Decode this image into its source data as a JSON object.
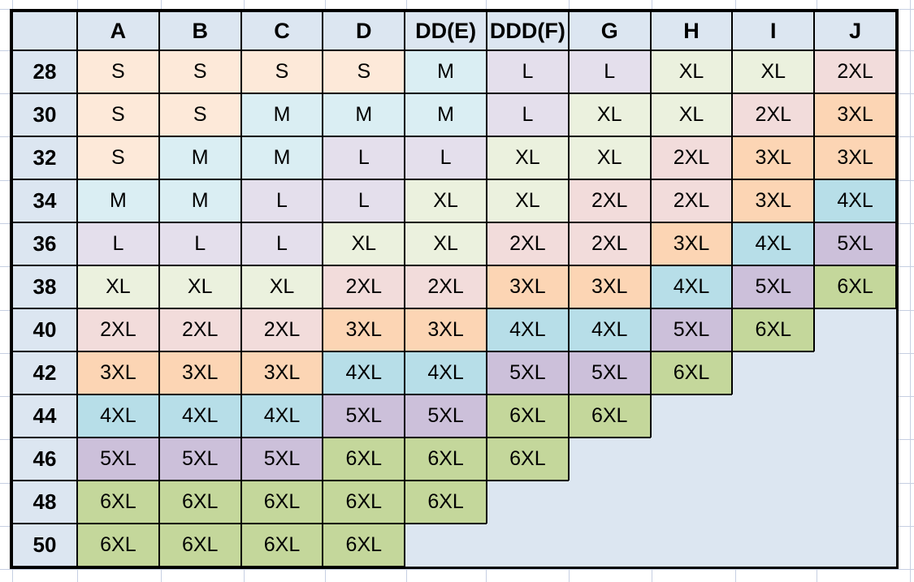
{
  "chart_data": {
    "type": "table",
    "columns": [
      "",
      "A",
      "B",
      "C",
      "D",
      "DD(E)",
      "DDD(F)",
      "G",
      "H",
      "I",
      "J"
    ],
    "rows": [
      [
        "28",
        "S",
        "S",
        "S",
        "S",
        "M",
        "L",
        "L",
        "XL",
        "XL",
        "2XL"
      ],
      [
        "30",
        "S",
        "S",
        "M",
        "M",
        "M",
        "L",
        "XL",
        "XL",
        "2XL",
        "3XL"
      ],
      [
        "32",
        "S",
        "M",
        "M",
        "L",
        "L",
        "XL",
        "XL",
        "2XL",
        "3XL",
        "3XL"
      ],
      [
        "34",
        "M",
        "M",
        "L",
        "L",
        "XL",
        "XL",
        "2XL",
        "2XL",
        "3XL",
        "4XL"
      ],
      [
        "36",
        "L",
        "L",
        "L",
        "XL",
        "XL",
        "2XL",
        "2XL",
        "3XL",
        "4XL",
        "5XL"
      ],
      [
        "38",
        "XL",
        "XL",
        "XL",
        "2XL",
        "2XL",
        "3XL",
        "3XL",
        "4XL",
        "5XL",
        "6XL"
      ],
      [
        "40",
        "2XL",
        "2XL",
        "2XL",
        "3XL",
        "3XL",
        "4XL",
        "4XL",
        "5XL",
        "6XL",
        ""
      ],
      [
        "42",
        "3XL",
        "3XL",
        "3XL",
        "4XL",
        "4XL",
        "5XL",
        "5XL",
        "6XL",
        "",
        ""
      ],
      [
        "44",
        "4XL",
        "4XL",
        "4XL",
        "5XL",
        "5XL",
        "6XL",
        "6XL",
        "",
        "",
        ""
      ],
      [
        "46",
        "5XL",
        "5XL",
        "5XL",
        "6XL",
        "6XL",
        "6XL",
        "",
        "",
        "",
        ""
      ],
      [
        "48",
        "6XL",
        "6XL",
        "6XL",
        "6XL",
        "6XL",
        "",
        "",
        "",
        "",
        ""
      ],
      [
        "50",
        "6XL",
        "6XL",
        "6XL",
        "6XL",
        "",
        "",
        "",
        "",
        "",
        ""
      ]
    ],
    "cell_colors": {
      "S": "#FDE9D9",
      "M": "#DAEEF3",
      "L": "#E4DFEC",
      "XL": "#EBF1DE",
      "2XL": "#F2DCDB",
      "3XL": "#FCD5B4",
      "4XL": "#B7DEE8",
      "5XL": "#CCC0DA",
      "6XL": "#C4D79B"
    },
    "header_fill": "#DCE6F1",
    "row_label_fill": "#DCE6F1",
    "empty_fill": "#DCE6F1",
    "border_color": "#000000",
    "gridline_color": "#C6CFE2",
    "legend_position": "none",
    "grid": "on"
  }
}
